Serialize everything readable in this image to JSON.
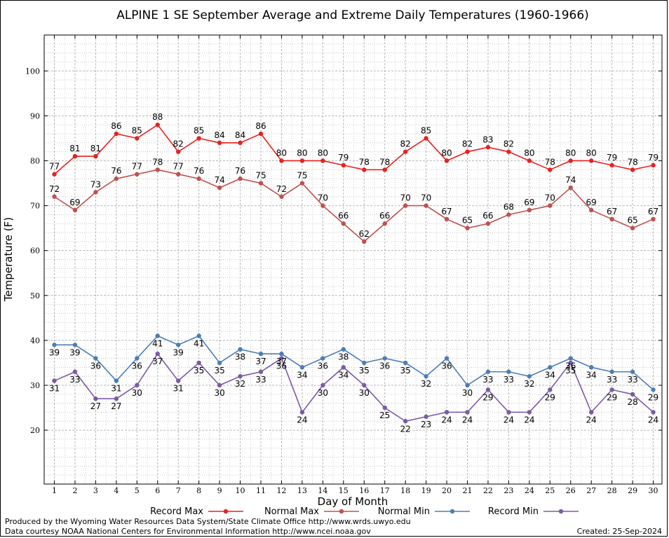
{
  "chart_data": {
    "type": "line",
    "title": "ALPINE 1 SE September Average and Extreme Daily Temperatures (1960-1966)",
    "xlabel": "Day of Month",
    "ylabel": "Temperature (F)",
    "ylim": [
      8,
      108
    ],
    "yticks": [
      20,
      30,
      40,
      50,
      60,
      70,
      80,
      90,
      100
    ],
    "grid": true,
    "legend_position": "bottom",
    "x": [
      1,
      2,
      3,
      4,
      5,
      6,
      7,
      8,
      9,
      10,
      11,
      12,
      13,
      14,
      15,
      16,
      17,
      18,
      19,
      20,
      21,
      22,
      23,
      24,
      25,
      26,
      27,
      28,
      29,
      30
    ],
    "series": [
      {
        "name": "Record Max",
        "color": "#e8211f",
        "label_side": "above",
        "values": [
          77,
          81,
          81,
          86,
          85,
          88,
          82,
          85,
          84,
          84,
          86,
          80,
          80,
          80,
          79,
          78,
          78,
          82,
          85,
          80,
          82,
          83,
          82,
          80,
          78,
          80,
          80,
          79,
          78,
          79
        ]
      },
      {
        "name": "Normal Max",
        "color": "#c0504d",
        "label_side": "above",
        "values": [
          72,
          69,
          73,
          76,
          77,
          78,
          77,
          76,
          74,
          76,
          75,
          72,
          75,
          70,
          66,
          62,
          66,
          70,
          70,
          67,
          65,
          66,
          68,
          69,
          70,
          74,
          69,
          67,
          65,
          67
        ]
      },
      {
        "name": "Normal Min",
        "color": "#4a7eb5",
        "label_side": "below",
        "values": [
          39,
          39,
          36,
          31,
          36,
          41,
          39,
          41,
          35,
          38,
          37,
          37,
          34,
          36,
          38,
          35,
          36,
          35,
          32,
          36,
          30,
          33,
          33,
          32,
          34,
          36,
          34,
          33,
          33,
          29
        ]
      },
      {
        "name": "Record Min",
        "color": "#7b5aa6",
        "label_side": "below",
        "values": [
          31,
          33,
          27,
          27,
          30,
          37,
          31,
          35,
          30,
          32,
          33,
          36,
          24,
          30,
          34,
          30,
          25,
          22,
          23,
          24,
          24,
          29,
          24,
          24,
          29,
          35,
          24,
          29,
          28,
          24
        ]
      }
    ]
  },
  "footer": {
    "produced_by": "Produced by the Wyoming Water Resources Data System/State Climate Office http://www.wrds.uwyo.edu",
    "courtesy": "Data courtesy NOAA National Centers for Environmental Information http://www.ncei.noaa.gov",
    "created": "Created:  25-Sep-2024"
  }
}
